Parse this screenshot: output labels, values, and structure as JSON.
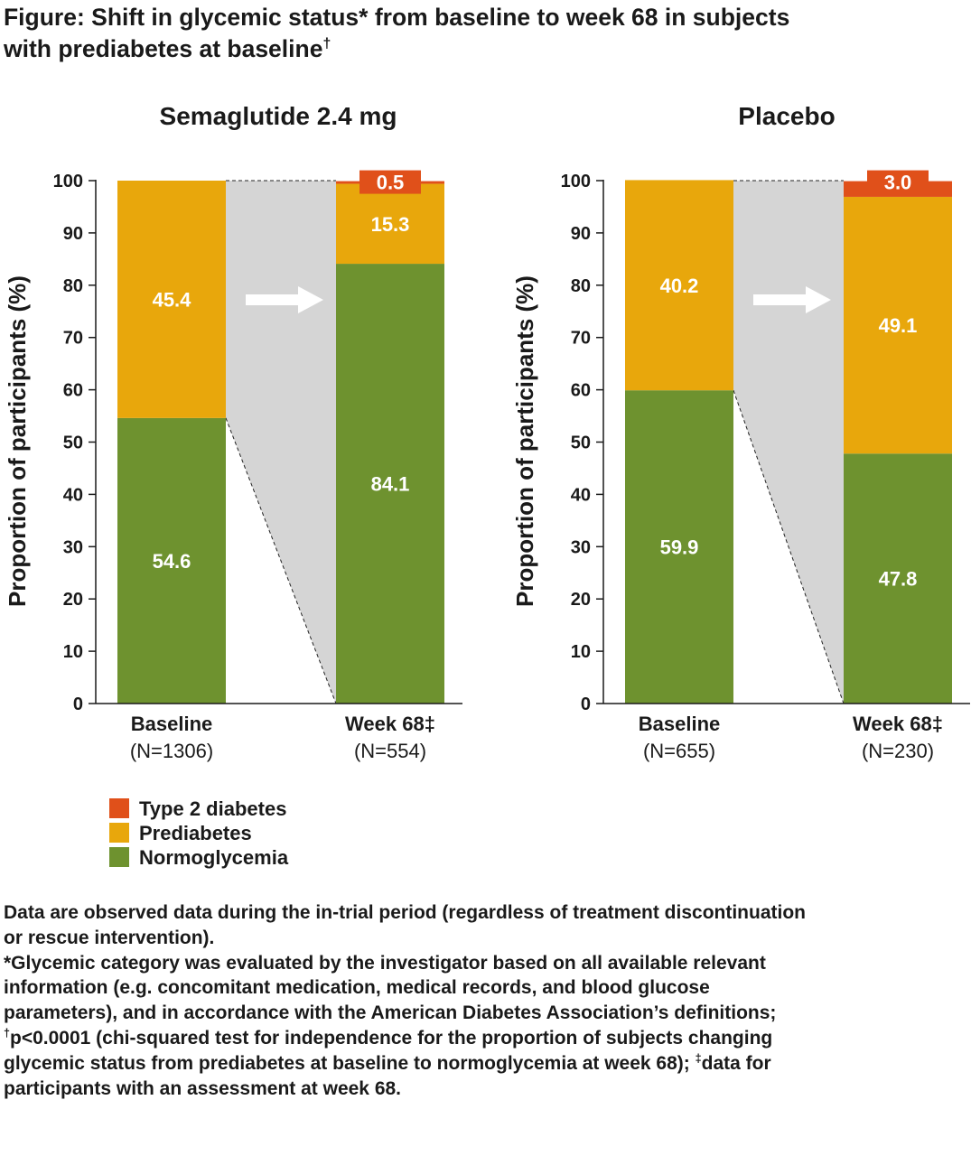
{
  "title_lines": [
    "Figure: Shift in glycemic status* from baseline to week 68 in subjects",
    "with prediabetes at baseline†"
  ],
  "colors": {
    "Type 2 diabetes": "#e0501a",
    "Prediabetes": "#e8a70c",
    "Normoglycemia": "#6e922f",
    "transition": "#d5d5d5"
  },
  "chart_data": [
    {
      "type": "bar",
      "stacked": true,
      "title": "Semaglutide 2.4 mg",
      "ylabel": "Proportion of participants (%)",
      "ylim": [
        0,
        100
      ],
      "yticks": [
        "0",
        "10",
        "20",
        "30",
        "40",
        "50",
        "60",
        "70",
        "80",
        "90",
        "100"
      ],
      "categories": [
        {
          "label": "Baseline",
          "n": "(N=1306)"
        },
        {
          "label": "Week 68‡",
          "n": "(N=554)"
        }
      ],
      "series": [
        {
          "name": "Normoglycemia",
          "values": [
            54.6,
            84.1
          ],
          "labels": [
            "54.6",
            "84.1"
          ]
        },
        {
          "name": "Prediabetes",
          "values": [
            45.4,
            15.3
          ],
          "labels": [
            "45.4",
            "15.3"
          ]
        },
        {
          "name": "Type 2 diabetes",
          "values": [
            0,
            0.5
          ],
          "labels": [
            "",
            "0.5"
          ]
        }
      ]
    },
    {
      "type": "bar",
      "stacked": true,
      "title": "Placebo",
      "ylabel": "Proportion of participants (%)",
      "ylim": [
        0,
        100
      ],
      "yticks": [
        "0",
        "10",
        "20",
        "30",
        "40",
        "50",
        "60",
        "70",
        "80",
        "90",
        "100"
      ],
      "categories": [
        {
          "label": "Baseline",
          "n": "(N=655)"
        },
        {
          "label": "Week 68‡",
          "n": "(N=230)"
        }
      ],
      "series": [
        {
          "name": "Normoglycemia",
          "values": [
            59.9,
            47.8
          ],
          "labels": [
            "59.9",
            "47.8"
          ]
        },
        {
          "name": "Prediabetes",
          "values": [
            40.2,
            49.1
          ],
          "labels": [
            "40.2",
            "49.1"
          ]
        },
        {
          "name": "Type 2 diabetes",
          "values": [
            0,
            3.0
          ],
          "labels": [
            "",
            "3.0"
          ]
        }
      ]
    }
  ],
  "legend": [
    "Type 2 diabetes",
    "Prediabetes",
    "Normoglycemia"
  ],
  "footnotes": [
    "Data are observed data during the in-trial period (regardless of treatment discontinuation",
    "or rescue intervention).",
    "*Glycemic category was evaluated by the investigator based on all available relevant",
    "information (e.g. concomitant medication, medical records, and blood glucose",
    "parameters), and in accordance with the American Diabetes Association’s definitions;",
    "†p<0.0001 (chi-squared test for independence for the proportion of subjects changing",
    "glycemic status from prediabetes at baseline to normoglycemia at week 68); ‡data for",
    "participants with an assessment at week 68."
  ]
}
